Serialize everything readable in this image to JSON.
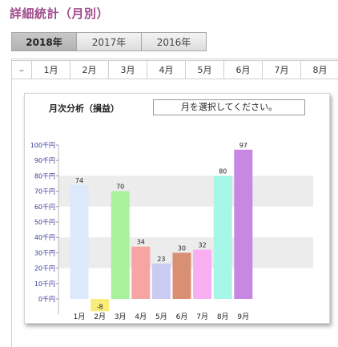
{
  "title": "詳細統計（月別）",
  "year_tabs": [
    {
      "label": "2018年",
      "active": true
    },
    {
      "label": "2017年",
      "active": false
    },
    {
      "label": "2016年",
      "active": false
    }
  ],
  "month_tabs": [
    "–",
    "1月",
    "2月",
    "3月",
    "4月",
    "5月",
    "6月",
    "7月",
    "8月"
  ],
  "card": {
    "title": "月次分析（損益）",
    "select_placeholder": "月を選択してください。"
  },
  "chart_data": {
    "type": "bar",
    "categories": [
      "1月",
      "2月",
      "3月",
      "4月",
      "5月",
      "6月",
      "7月",
      "8月",
      "9月"
    ],
    "values": [
      74,
      -8,
      70,
      34,
      23,
      30,
      32,
      80,
      97
    ],
    "value_labels": [
      "74",
      "-8",
      "70",
      "34",
      "23",
      "30",
      "32",
      "80",
      "97"
    ],
    "colors": [
      "#dce9fb",
      "#f8ec7a",
      "#a8f29c",
      "#f6a5a2",
      "#c9cbf2",
      "#d98f74",
      "#f8aef0",
      "#a6f7e8",
      "#c787e3"
    ],
    "y_ticks": [
      "0千円",
      "10千円",
      "20千円",
      "30千円",
      "40千円",
      "50千円",
      "60千円",
      "70千円",
      "80千円",
      "90千円",
      "100千円"
    ],
    "ylim": [
      -10,
      100
    ],
    "grid": "alternating bands"
  }
}
